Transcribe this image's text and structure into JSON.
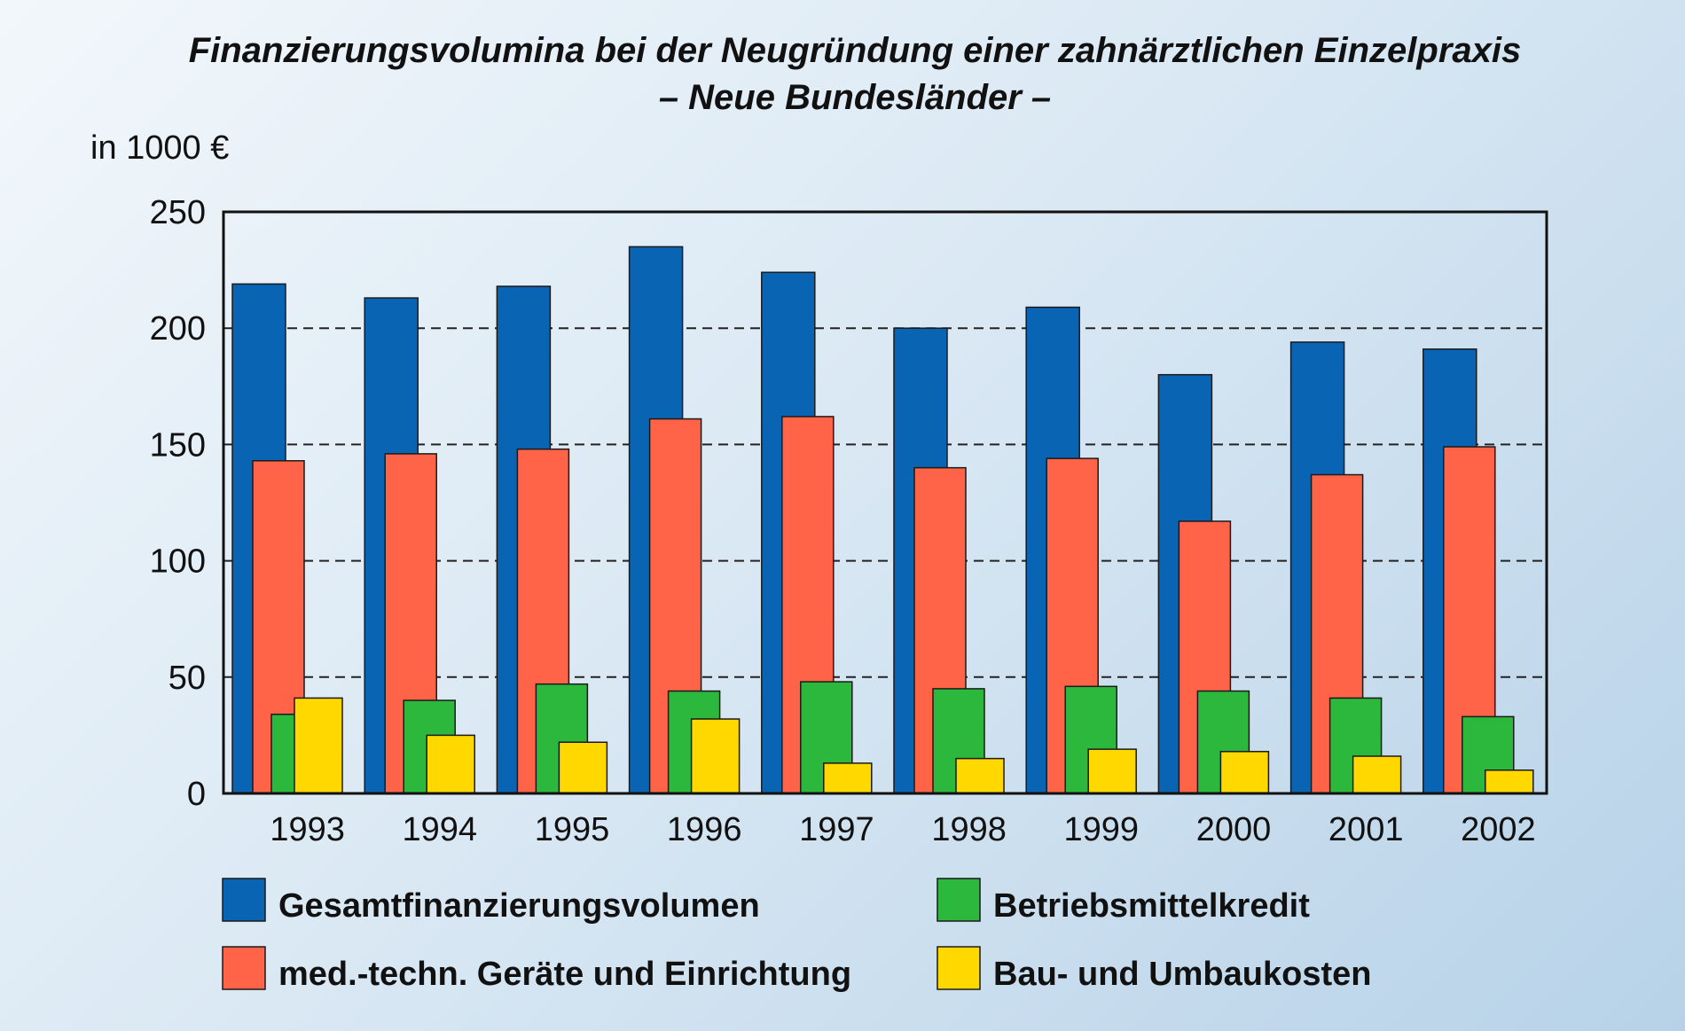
{
  "chart_data": {
    "type": "bar",
    "title": "Finanzierungsvolumina bei der Neugründung einer zahnärztlichen Einzelpraxis",
    "subtitle": "– Neue Bundesländer –",
    "ylabel": "in 1000 €",
    "xlabel": "",
    "ylim": [
      0,
      250
    ],
    "yticks": [
      0,
      50,
      100,
      150,
      200,
      250
    ],
    "grid": true,
    "legend_position": "bottom",
    "categories": [
      "1993",
      "1994",
      "1995",
      "1996",
      "1997",
      "1998",
      "1999",
      "2000",
      "2001",
      "2002"
    ],
    "series": [
      {
        "name": "Gesamtfinanzierungsvolumen",
        "color": "#0a64b4",
        "values": [
          219,
          213,
          218,
          235,
          224,
          200,
          209,
          180,
          194,
          191
        ]
      },
      {
        "name": "med.-techn. Geräte und Einrichtung",
        "color": "#ff6448",
        "values": [
          143,
          146,
          148,
          161,
          162,
          140,
          144,
          117,
          137,
          149
        ]
      },
      {
        "name": "Betriebsmittelkredit",
        "color": "#2cb83c",
        "values": [
          34,
          40,
          47,
          44,
          48,
          45,
          46,
          44,
          41,
          33
        ]
      },
      {
        "name": "Bau- und Umbaukosten",
        "color": "#ffd800",
        "values": [
          41,
          25,
          22,
          32,
          13,
          15,
          19,
          18,
          16,
          10
        ]
      }
    ]
  }
}
